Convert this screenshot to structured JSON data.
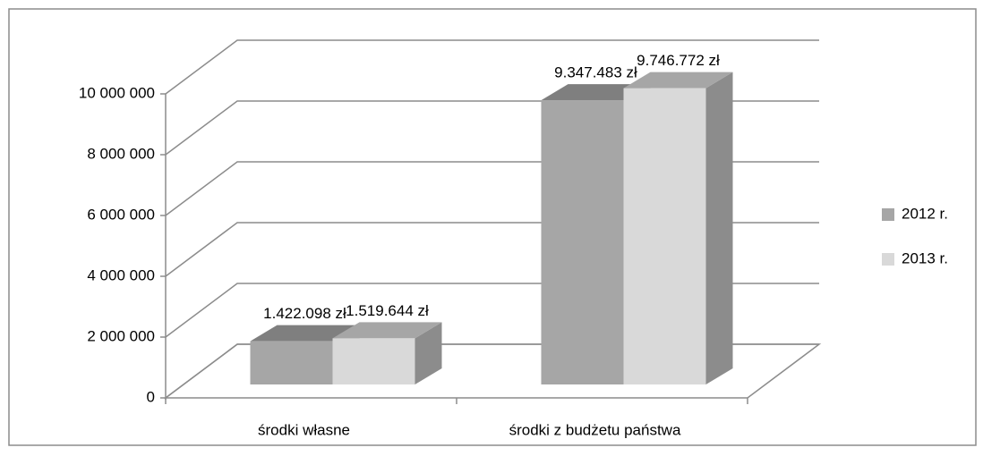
{
  "chart_data": {
    "type": "bar3d",
    "categories": [
      "środki własne",
      "środki z budżetu państwa"
    ],
    "series": [
      {
        "name": "2012 r.",
        "color": "#a6a6a6",
        "values": [
          1422098,
          9347483
        ],
        "value_labels": [
          "1.422.098 zł",
          "9.347.483 zł"
        ]
      },
      {
        "name": "2013 r.",
        "color": "#d9d9d9",
        "values": [
          1519644,
          9746772
        ],
        "value_labels": [
          "1.519.644 zł",
          "9.746.772 zł"
        ]
      }
    ],
    "ylim": [
      0,
      10000000
    ],
    "yticks": [
      0,
      {
        "value": 2000000,
        "label": "2 000 000"
      },
      {
        "value": 4000000,
        "label": "4 000 000"
      },
      {
        "value": 6000000,
        "label": "6 000 000"
      },
      {
        "value": 8000000,
        "label": "8 000 000"
      },
      {
        "value": 10000000,
        "label": "10 000 000"
      }
    ],
    "grid": true,
    "legend": "right"
  }
}
